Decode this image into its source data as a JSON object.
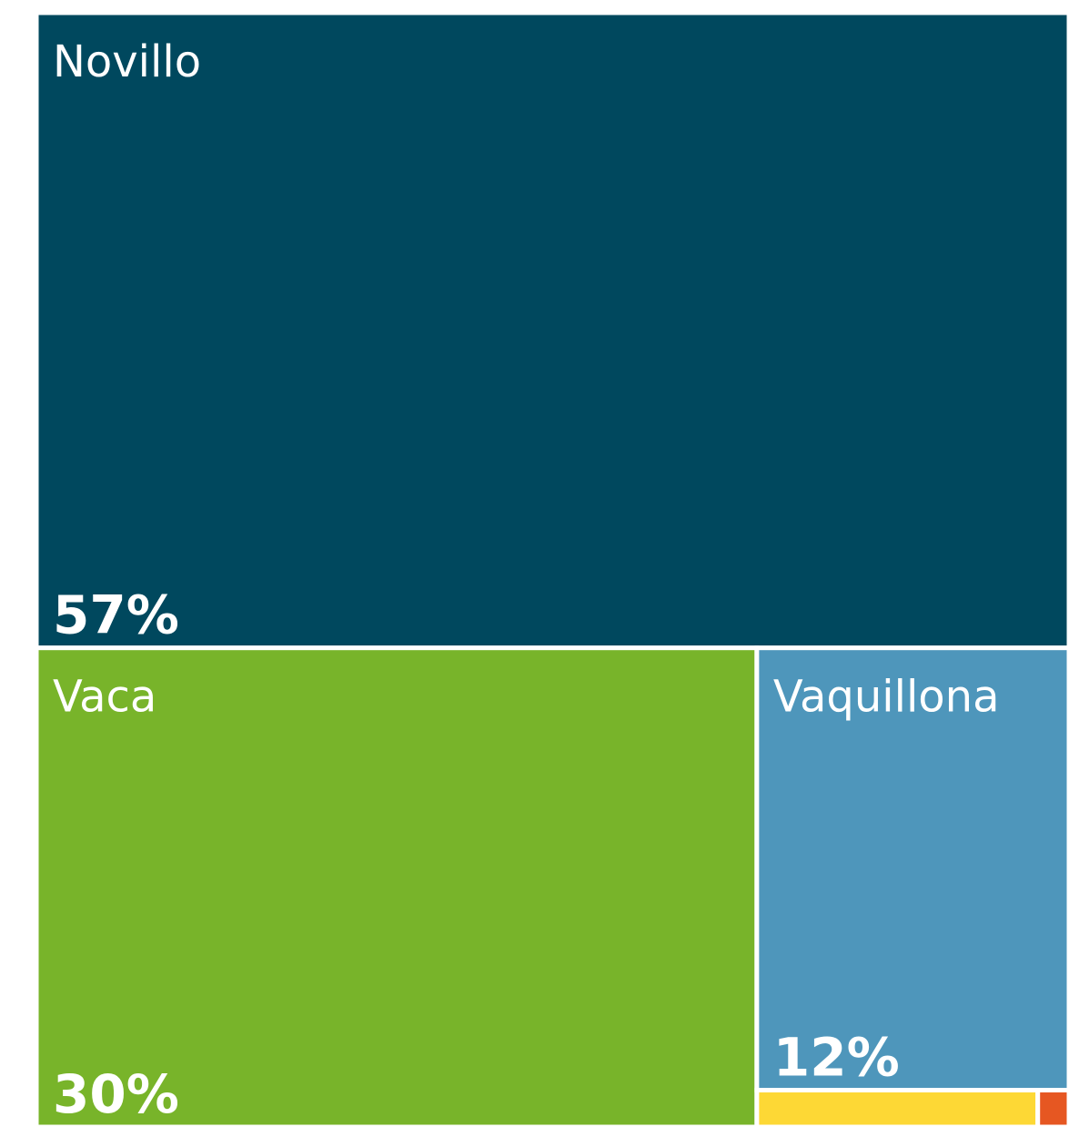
{
  "chart_data": {
    "type": "treemap",
    "categories": [
      "Novillo",
      "Vaca",
      "Vaquillona",
      null,
      null
    ],
    "values": [
      57,
      30,
      12,
      0.9,
      0.1
    ],
    "value_labels": [
      "57%",
      "30%",
      "12%",
      null,
      null
    ],
    "colors": [
      "#00485e",
      "#78b42a",
      "#4e96bb",
      "#fdd835",
      "#e65722"
    ]
  }
}
